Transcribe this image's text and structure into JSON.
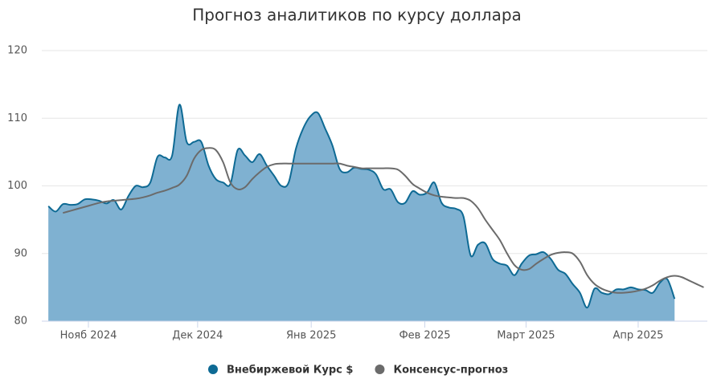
{
  "chart_data": {
    "type": "area",
    "title": "Прогноз аналитиков по курсу доллара",
    "series": [
      {
        "name": "Внебиржевой Курс $",
        "type": "area",
        "color": "#0e6a94",
        "fill": "#7fb1d1",
        "values": [
          97,
          96.2,
          97.3,
          97.2,
          97.3,
          98,
          98,
          97.8,
          97.4,
          97.9,
          96.5,
          98.5,
          100,
          99.8,
          100.5,
          104.3,
          104.2,
          104.5,
          112,
          106.5,
          106.5,
          106.5,
          103,
          101,
          100.5,
          100.3,
          105.3,
          104.5,
          103.5,
          104.7,
          103,
          101.5,
          100,
          100.5,
          105.5,
          108.5,
          110.3,
          110.8,
          108.5,
          106,
          102.5,
          102,
          102.7,
          102.5,
          102.4,
          101.7,
          99.5,
          99.5,
          97.6,
          97.5,
          99.2,
          98.7,
          99,
          100.5,
          97.5,
          96.8,
          96.6,
          95.5,
          89.7,
          91.3,
          91.5,
          89.2,
          88.5,
          88.2,
          86.8,
          88.5,
          89.7,
          89.9,
          90.2,
          89.2,
          87.6,
          87,
          85.5,
          84.2,
          82,
          84.8,
          84.2,
          84,
          84.7,
          84.7,
          85,
          84.7,
          84.6,
          84.2,
          85.7,
          86.2,
          83.3,
          null,
          null,
          null,
          null
        ]
      },
      {
        "name": "Консенсус-прогноз",
        "type": "line",
        "color": "#6b6b6b",
        "values": [
          null,
          null,
          96,
          96.3,
          96.6,
          96.9,
          97.2,
          97.5,
          97.7,
          97.8,
          97.9,
          98,
          98.1,
          98.3,
          98.6,
          99,
          99.3,
          99.7,
          100.2,
          101.5,
          104,
          105.3,
          105.6,
          105.3,
          103.5,
          100.5,
          99.5,
          99.8,
          101,
          102,
          102.8,
          103.2,
          103.3,
          103.3,
          103.3,
          103.3,
          103.3,
          103.3,
          103.3,
          103.3,
          103.3,
          103,
          102.8,
          102.6,
          102.6,
          102.6,
          102.6,
          102.6,
          102.4,
          101.5,
          100.3,
          99.6,
          99,
          98.6,
          98.4,
          98.3,
          98.2,
          98.2,
          97.8,
          96.7,
          95,
          93.5,
          92,
          90,
          88.3,
          87.6,
          87.7,
          88.5,
          89.2,
          89.8,
          90.1,
          90.2,
          90,
          88.8,
          86.8,
          85.5,
          84.8,
          84.4,
          84.2,
          84.2,
          84.3,
          84.5,
          84.8,
          85.3,
          86,
          86.5,
          86.7,
          86.5,
          86,
          85.5,
          85
        ]
      }
    ],
    "xlim": [
      -0.9,
      90.5
    ],
    "xticks": [
      {
        "value": 5.5,
        "label": "Нояб 2024"
      },
      {
        "value": 20.5,
        "label": "Дек 2024"
      },
      {
        "value": 36.1,
        "label": "Янв 2025"
      },
      {
        "value": 51.7,
        "label": "Фев 2025"
      },
      {
        "value": 65.6,
        "label": "Март 2025"
      },
      {
        "value": 81,
        "label": "Апр 2025"
      }
    ],
    "ylim": [
      80,
      120
    ],
    "yticks": [
      80,
      90,
      100,
      110,
      120
    ],
    "grid": true,
    "legend": "bottom"
  }
}
